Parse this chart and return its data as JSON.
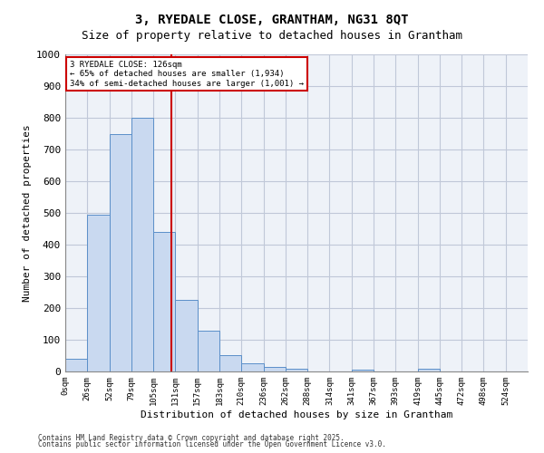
{
  "title_line1": "3, RYEDALE CLOSE, GRANTHAM, NG31 8QT",
  "title_line2": "Size of property relative to detached houses in Grantham",
  "xlabel": "Distribution of detached houses by size in Grantham",
  "ylabel": "Number of detached properties",
  "bin_labels": [
    "0sqm",
    "26sqm",
    "52sqm",
    "79sqm",
    "105sqm",
    "131sqm",
    "157sqm",
    "183sqm",
    "210sqm",
    "236sqm",
    "262sqm",
    "288sqm",
    "314sqm",
    "341sqm",
    "367sqm",
    "393sqm",
    "419sqm",
    "445sqm",
    "472sqm",
    "498sqm",
    "524sqm"
  ],
  "bar_heights": [
    40,
    495,
    750,
    800,
    440,
    225,
    128,
    52,
    27,
    14,
    10,
    0,
    0,
    5,
    0,
    0,
    8,
    0,
    0,
    0,
    0
  ],
  "bar_color": "#c9d9f0",
  "bar_edge_color": "#5b8fc9",
  "ylim": [
    0,
    1000
  ],
  "yticks": [
    0,
    100,
    200,
    300,
    400,
    500,
    600,
    700,
    800,
    900,
    1000
  ],
  "red_line_x": 4.62,
  "annotation_title": "3 RYEDALE CLOSE: 126sqm",
  "annotation_line1": "← 65% of detached houses are smaller (1,934)",
  "annotation_line2": "34% of semi-detached houses are larger (1,001) →",
  "annotation_box_color": "#ffffff",
  "annotation_box_edge_color": "#cc0000",
  "red_line_color": "#cc0000",
  "grid_color": "#c0c8d8",
  "bg_color": "#eef2f8",
  "footer_line1": "Contains HM Land Registry data © Crown copyright and database right 2025.",
  "footer_line2": "Contains public sector information licensed under the Open Government Licence v3.0."
}
